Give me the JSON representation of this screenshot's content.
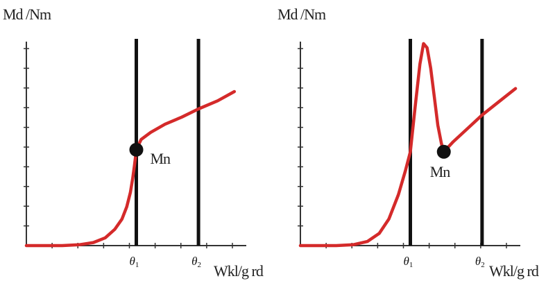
{
  "chart_data": [
    {
      "type": "line",
      "ylabel": "Md /Nm",
      "xlabel": "Wkl/g rd",
      "vlines": [
        {
          "label": "θ",
          "sub": "1",
          "x": 4.6
        },
        {
          "label": "θ",
          "sub": "2",
          "x": 7.2
        }
      ],
      "point": {
        "label": "Mn",
        "x": 4.6,
        "y": 4.7
      },
      "series": [
        {
          "color": "#d42a2a",
          "x": [
            0,
            1.5,
            2.2,
            2.8,
            3.3,
            3.7,
            4.0,
            4.2,
            4.35,
            4.45,
            4.52,
            4.57,
            4.6,
            4.8,
            5.2,
            5.8,
            6.5,
            7.2,
            8.0,
            8.7
          ],
          "y": [
            0,
            0,
            0.04,
            0.15,
            0.38,
            0.8,
            1.3,
            1.9,
            2.6,
            3.3,
            3.9,
            4.4,
            4.7,
            5.2,
            5.55,
            5.95,
            6.3,
            6.7,
            7.1,
            7.55
          ]
        }
      ],
      "xlim": [
        0,
        9.2
      ],
      "ylim": [
        0,
        10
      ],
      "yticks": 10,
      "xticks": 8,
      "colors": {
        "axis": "#333333",
        "vline": "#111111",
        "curve": "#d42a2a"
      }
    },
    {
      "type": "line",
      "ylabel": "Md /Nm",
      "xlabel": "Wkl/g rd",
      "vlines": [
        {
          "label": "θ",
          "sub": "1",
          "x": 4.6
        },
        {
          "label": "θ",
          "sub": "2",
          "x": 7.6
        }
      ],
      "point": {
        "label": "Mn",
        "x": 6.0,
        "y": 4.6
      },
      "series": [
        {
          "color": "#d42a2a",
          "x": [
            0,
            1.5,
            2.2,
            2.8,
            3.3,
            3.7,
            4.1,
            4.4,
            4.6,
            4.8,
            5.0,
            5.15,
            5.3,
            5.45,
            5.6,
            5.75,
            5.9,
            6.0,
            6.4,
            7.0,
            7.6,
            8.3,
            9.0
          ],
          "y": [
            0,
            0,
            0.04,
            0.2,
            0.6,
            1.3,
            2.5,
            3.7,
            4.6,
            6.8,
            8.9,
            9.9,
            9.7,
            8.7,
            7.3,
            5.9,
            5.0,
            4.6,
            5.1,
            5.75,
            6.4,
            7.05,
            7.7
          ]
        }
      ],
      "xlim": [
        0,
        9.2
      ],
      "ylim": [
        0,
        10
      ],
      "yticks": 10,
      "xticks": 8,
      "colors": {
        "axis": "#333333",
        "vline": "#111111",
        "curve": "#d42a2a"
      }
    }
  ]
}
